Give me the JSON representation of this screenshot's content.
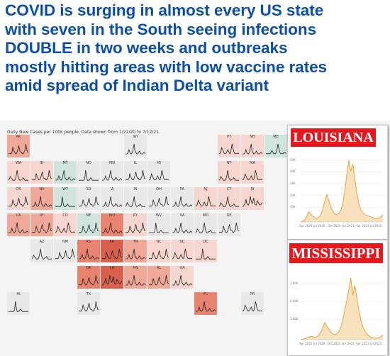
{
  "headline": {
    "lines": [
      "COVID is surging in almost every US state",
      "with seven in the South seeing infections",
      "DOUBLE in two weeks and outbreaks",
      "mostly hitting areas with low vaccine rates",
      "amid spread of Indian Delta variant"
    ]
  },
  "map": {
    "caption": "Daily New Cases per 100k people. Data shown from 1/22/20 to 7/12/21.",
    "colors": {
      "low": "#f6d6cf",
      "mid": "#f0a898",
      "high": "#e7836f",
      "vhigh": "#d9604c",
      "green": "#cfe4dc",
      "neutral": "#e9e9e9"
    },
    "states": [
      {
        "abbr": "AK",
        "row": 0,
        "col": 0,
        "level": "mid",
        "shape": 1
      },
      {
        "abbr": "WI",
        "row": 0,
        "col": 5,
        "level": "neutral",
        "shape": 2
      },
      {
        "abbr": "VT",
        "row": 0,
        "col": 9,
        "level": "low",
        "shape": 3
      },
      {
        "abbr": "NH",
        "row": 0,
        "col": 10,
        "level": "low",
        "shape": 2
      },
      {
        "abbr": "ME",
        "row": 0,
        "col": 11,
        "level": "green",
        "shape": 4
      },
      {
        "abbr": "WA",
        "row": 1,
        "col": 0,
        "level": "low",
        "shape": 5
      },
      {
        "abbr": "ID",
        "row": 1,
        "col": 1,
        "level": "low",
        "shape": 1
      },
      {
        "abbr": "MT",
        "row": 1,
        "col": 2,
        "level": "green",
        "shape": 2
      },
      {
        "abbr": "ND",
        "row": 1,
        "col": 3,
        "level": "neutral",
        "shape": 6
      },
      {
        "abbr": "MN",
        "row": 1,
        "col": 4,
        "level": "neutral",
        "shape": 2
      },
      {
        "abbr": "IL",
        "row": 1,
        "col": 5,
        "level": "neutral",
        "shape": 1
      },
      {
        "abbr": "MI",
        "row": 1,
        "col": 6,
        "level": "neutral",
        "shape": 3
      },
      {
        "abbr": "NY",
        "row": 1,
        "col": 9,
        "level": "low",
        "shape": 5
      },
      {
        "abbr": "MA",
        "row": 1,
        "col": 10,
        "level": "low",
        "shape": 3
      },
      {
        "abbr": "OR",
        "row": 2,
        "col": 0,
        "level": "low",
        "shape": 1
      },
      {
        "abbr": "NV",
        "row": 2,
        "col": 1,
        "level": "mid",
        "shape": 2
      },
      {
        "abbr": "WY",
        "row": 2,
        "col": 2,
        "level": "green",
        "shape": 6
      },
      {
        "abbr": "SD",
        "row": 2,
        "col": 3,
        "level": "neutral",
        "shape": 1
      },
      {
        "abbr": "IA",
        "row": 2,
        "col": 4,
        "level": "neutral",
        "shape": 2
      },
      {
        "abbr": "IN",
        "row": 2,
        "col": 5,
        "level": "neutral",
        "shape": 5
      },
      {
        "abbr": "OH",
        "row": 2,
        "col": 6,
        "level": "neutral",
        "shape": 1
      },
      {
        "abbr": "PA",
        "row": 2,
        "col": 7,
        "level": "neutral",
        "shape": 2
      },
      {
        "abbr": "NJ",
        "row": 2,
        "col": 8,
        "level": "low",
        "shape": 3
      },
      {
        "abbr": "CT",
        "row": 2,
        "col": 9,
        "level": "low",
        "shape": 5
      },
      {
        "abbr": "RI",
        "row": 2,
        "col": 10,
        "level": "low",
        "shape": 7
      },
      {
        "abbr": "CA",
        "row": 3,
        "col": 0,
        "level": "mid",
        "shape": 2
      },
      {
        "abbr": "UT",
        "row": 3,
        "col": 1,
        "level": "mid",
        "shape": 1
      },
      {
        "abbr": "CO",
        "row": 3,
        "col": 2,
        "level": "low",
        "shape": 3
      },
      {
        "abbr": "NE",
        "row": 3,
        "col": 3,
        "level": "green",
        "shape": 1
      },
      {
        "abbr": "MO",
        "row": 3,
        "col": 4,
        "level": "high",
        "shape": 2
      },
      {
        "abbr": "KY",
        "row": 3,
        "col": 5,
        "level": "low",
        "shape": 1
      },
      {
        "abbr": "WV",
        "row": 3,
        "col": 6,
        "level": "neutral",
        "shape": 6
      },
      {
        "abbr": "VA",
        "row": 3,
        "col": 7,
        "level": "neutral",
        "shape": 2
      },
      {
        "abbr": "MD",
        "row": 3,
        "col": 8,
        "level": "neutral",
        "shape": 5
      },
      {
        "abbr": "DE",
        "row": 3,
        "col": 9,
        "level": "neutral",
        "shape": 1
      },
      {
        "abbr": "AZ",
        "row": 4,
        "col": 1,
        "level": "neutral",
        "shape": 5
      },
      {
        "abbr": "NM",
        "row": 4,
        "col": 2,
        "level": "neutral",
        "shape": 1
      },
      {
        "abbr": "KS",
        "row": 4,
        "col": 3,
        "level": "high",
        "shape": 2
      },
      {
        "abbr": "AR",
        "row": 4,
        "col": 4,
        "level": "vhigh",
        "shape": 1
      },
      {
        "abbr": "TN",
        "row": 4,
        "col": 5,
        "level": "mid",
        "shape": 2
      },
      {
        "abbr": "NC",
        "row": 4,
        "col": 6,
        "level": "low",
        "shape": 1
      },
      {
        "abbr": "SC",
        "row": 4,
        "col": 7,
        "level": "low",
        "shape": 3
      },
      {
        "abbr": "DC",
        "row": 4,
        "col": 8,
        "level": "low",
        "shape": 6
      },
      {
        "abbr": "OK",
        "row": 5,
        "col": 3,
        "level": "high",
        "shape": 1
      },
      {
        "abbr": "LA",
        "row": 5,
        "col": 4,
        "level": "vhigh",
        "shape": 7
      },
      {
        "abbr": "MS",
        "row": 5,
        "col": 5,
        "level": "mid",
        "shape": 2
      },
      {
        "abbr": "AL",
        "row": 5,
        "col": 6,
        "level": "mid",
        "shape": 1
      },
      {
        "abbr": "GA",
        "row": 5,
        "col": 7,
        "level": "low",
        "shape": 2
      },
      {
        "abbr": "HI",
        "row": 6,
        "col": 0,
        "level": "neutral",
        "shape": 6
      },
      {
        "abbr": "TX",
        "row": 6,
        "col": 3,
        "level": "neutral",
        "shape": 1
      },
      {
        "abbr": "FL",
        "row": 6,
        "col": 8,
        "level": "high",
        "shape": 2
      },
      {
        "abbr": "PR",
        "row": 6,
        "col": 10,
        "level": "neutral",
        "shape": 3
      }
    ]
  },
  "louisiana": {
    "title": "LOUISIANA",
    "y_ticks": [
      "50K",
      "40K",
      "30K",
      "20K",
      "10K"
    ],
    "x_ticks": [
      "Apr 2020",
      "Jul 2020",
      "Oct 2020",
      "Jan 2021",
      "Apr 2021",
      "Jul 2021"
    ],
    "curve": [
      0,
      0.2,
      0.5,
      1.4,
      2.8,
      2.2,
      1.6,
      1.2,
      1.0,
      1.3,
      2.0,
      3.5,
      5.8,
      7.5,
      6.0,
      4.2,
      3.0,
      2.2,
      2.0,
      2.4,
      3.2,
      5.0,
      8.5,
      13.0,
      17.0,
      14.0,
      16.0,
      12.0,
      8.0,
      5.0,
      3.4,
      2.6,
      2.0,
      1.8,
      1.6,
      1.4,
      1.2,
      1.0,
      1.0,
      1.1,
      1.4,
      2.0
    ]
  },
  "mississippi": {
    "title": "MISSISSIPPI",
    "y_ticks": [
      "3,000",
      "2,000",
      "1,000"
    ],
    "x_ticks": [
      "Apr 2020",
      "Jul 2020",
      "Oct 2020",
      "Jan 2021",
      "Apr 2021",
      "Jul 2021"
    ],
    "curve": [
      0,
      0.1,
      0.2,
      0.3,
      0.5,
      0.7,
      0.6,
      0.5,
      0.6,
      0.9,
      1.5,
      2.4,
      3.5,
      2.8,
      2.2,
      1.6,
      1.2,
      1.0,
      1.2,
      1.6,
      2.5,
      4.0,
      6.0,
      8.0,
      10.0,
      12.5,
      9.0,
      11.0,
      8.5,
      6.0,
      4.0,
      2.6,
      1.8,
      1.2,
      0.8,
      0.5,
      0.4,
      0.3,
      0.3,
      0.4,
      0.6,
      1.0
    ]
  }
}
